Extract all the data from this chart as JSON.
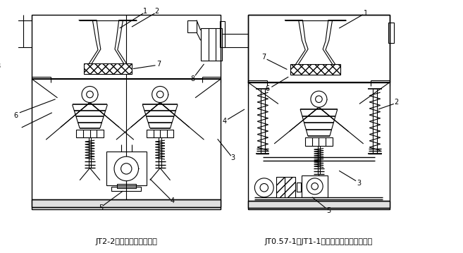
{
  "title_left": "JT2-2锯齿波跳汰机结构图",
  "title_right": "JT0.57-1、JT1-1锯齿波跳汰机结构示意图",
  "bg_color": "#ffffff",
  "line_color": "#000000",
  "fig_width": 6.57,
  "fig_height": 3.59,
  "dpi": 100
}
